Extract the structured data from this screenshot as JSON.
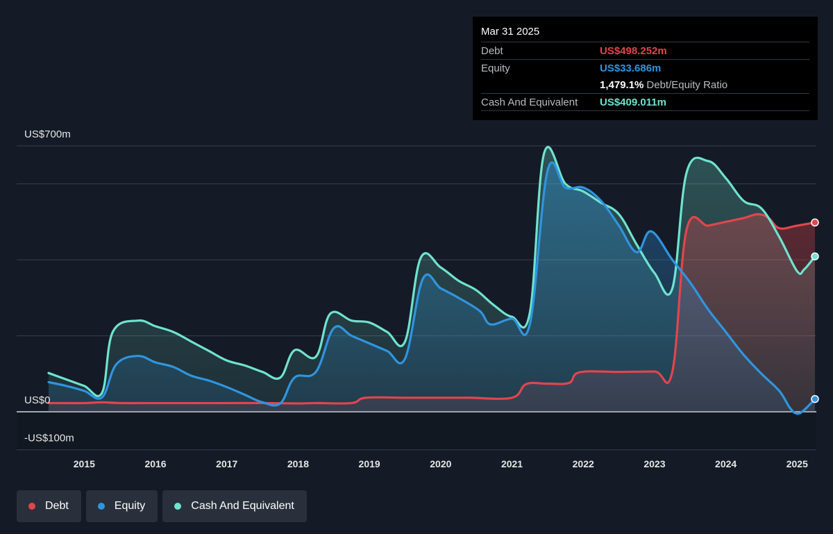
{
  "tooltip": {
    "date": "Mar 31 2025",
    "debt_label": "Debt",
    "debt_value": "US$498.252m",
    "equity_label": "Equity",
    "equity_value": "US$33.686m",
    "ratio_value": "1,479.1%",
    "ratio_label": "Debt/Equity Ratio",
    "cash_label": "Cash And Equivalent",
    "cash_value": "US$409.011m"
  },
  "legend": {
    "debt": "Debt",
    "equity": "Equity",
    "cash": "Cash And Equivalent"
  },
  "colors": {
    "background": "#151b26",
    "debt": "#e2454c",
    "equity": "#2f95e0",
    "cash": "#6fe3cf",
    "tooltip_bg": "#000000"
  },
  "chart_data": {
    "type": "area",
    "y_unit": "US$ millions",
    "ylim": [
      -100,
      700
    ],
    "y_tick_labels": [
      {
        "value": 700,
        "label": "US$700m"
      },
      {
        "value": 0,
        "label": "US$0"
      },
      {
        "value": -100,
        "label": "-US$100m"
      }
    ],
    "y_gridlines": [
      700,
      600,
      400,
      200,
      0,
      -100
    ],
    "x_tick_labels": [
      "2015",
      "2016",
      "2017",
      "2018",
      "2019",
      "2020",
      "2021",
      "2022",
      "2023",
      "2024",
      "2025"
    ],
    "x_range": [
      2014.48,
      2025.25
    ],
    "series": [
      {
        "name": "Debt",
        "color": "#e2454c",
        "points": [
          [
            2014.5,
            23
          ],
          [
            2015.0,
            23
          ],
          [
            2015.25,
            25
          ],
          [
            2015.5,
            23
          ],
          [
            2016.0,
            23
          ],
          [
            2016.5,
            23
          ],
          [
            2017.0,
            23
          ],
          [
            2017.5,
            23
          ],
          [
            2018.0,
            22
          ],
          [
            2018.25,
            23
          ],
          [
            2018.75,
            23
          ],
          [
            2018.95,
            37
          ],
          [
            2019.5,
            37
          ],
          [
            2020.0,
            37
          ],
          [
            2020.4,
            37
          ],
          [
            2021.0,
            37
          ],
          [
            2021.2,
            73
          ],
          [
            2021.5,
            74
          ],
          [
            2021.8,
            76
          ],
          [
            2021.95,
            104
          ],
          [
            2022.5,
            105
          ],
          [
            2023.0,
            106
          ],
          [
            2023.25,
            106
          ],
          [
            2023.45,
            480
          ],
          [
            2023.75,
            490
          ],
          [
            2024.0,
            500
          ],
          [
            2024.25,
            510
          ],
          [
            2024.45,
            520
          ],
          [
            2024.6,
            510
          ],
          [
            2024.75,
            483
          ],
          [
            2025.0,
            490
          ],
          [
            2025.25,
            498.252
          ]
        ]
      },
      {
        "name": "Equity",
        "color": "#2f95e0",
        "points": [
          [
            2014.5,
            78
          ],
          [
            2014.75,
            68
          ],
          [
            2015.0,
            55
          ],
          [
            2015.25,
            38
          ],
          [
            2015.45,
            125
          ],
          [
            2015.75,
            147
          ],
          [
            2016.0,
            130
          ],
          [
            2016.25,
            118
          ],
          [
            2016.5,
            95
          ],
          [
            2016.75,
            82
          ],
          [
            2017.0,
            65
          ],
          [
            2017.25,
            45
          ],
          [
            2017.5,
            25
          ],
          [
            2017.75,
            22
          ],
          [
            2017.95,
            90
          ],
          [
            2018.25,
            105
          ],
          [
            2018.5,
            220
          ],
          [
            2018.75,
            200
          ],
          [
            2019.0,
            180
          ],
          [
            2019.25,
            160
          ],
          [
            2019.5,
            140
          ],
          [
            2019.75,
            350
          ],
          [
            2020.0,
            325
          ],
          [
            2020.25,
            300
          ],
          [
            2020.55,
            265
          ],
          [
            2020.7,
            230
          ],
          [
            2021.0,
            245
          ],
          [
            2021.25,
            230
          ],
          [
            2021.5,
            635
          ],
          [
            2021.75,
            590
          ],
          [
            2022.0,
            590
          ],
          [
            2022.25,
            555
          ],
          [
            2022.5,
            490
          ],
          [
            2022.75,
            420
          ],
          [
            2022.95,
            475
          ],
          [
            2023.25,
            400
          ],
          [
            2023.5,
            340
          ],
          [
            2023.75,
            270
          ],
          [
            2024.0,
            210
          ],
          [
            2024.25,
            150
          ],
          [
            2024.5,
            100
          ],
          [
            2024.75,
            55
          ],
          [
            2024.9,
            10
          ],
          [
            2025.0,
            -5
          ],
          [
            2025.1,
            5
          ],
          [
            2025.25,
            33.686
          ]
        ]
      },
      {
        "name": "Cash And Equivalent",
        "color": "#6fe3cf",
        "points": [
          [
            2014.5,
            102
          ],
          [
            2014.75,
            85
          ],
          [
            2015.0,
            68
          ],
          [
            2015.25,
            50
          ],
          [
            2015.4,
            210
          ],
          [
            2015.75,
            240
          ],
          [
            2016.0,
            225
          ],
          [
            2016.25,
            210
          ],
          [
            2016.5,
            185
          ],
          [
            2016.75,
            160
          ],
          [
            2017.0,
            135
          ],
          [
            2017.25,
            122
          ],
          [
            2017.5,
            105
          ],
          [
            2017.75,
            90
          ],
          [
            2017.95,
            162
          ],
          [
            2018.25,
            145
          ],
          [
            2018.45,
            258
          ],
          [
            2018.75,
            240
          ],
          [
            2019.0,
            235
          ],
          [
            2019.25,
            210
          ],
          [
            2019.5,
            185
          ],
          [
            2019.72,
            405
          ],
          [
            2020.0,
            380
          ],
          [
            2020.25,
            345
          ],
          [
            2020.5,
            320
          ],
          [
            2020.75,
            280
          ],
          [
            2021.0,
            250
          ],
          [
            2021.25,
            260
          ],
          [
            2021.45,
            680
          ],
          [
            2021.75,
            600
          ],
          [
            2022.0,
            580
          ],
          [
            2022.25,
            550
          ],
          [
            2022.5,
            520
          ],
          [
            2022.75,
            440
          ],
          [
            2023.0,
            365
          ],
          [
            2023.25,
            325
          ],
          [
            2023.45,
            630
          ],
          [
            2023.75,
            660
          ],
          [
            2024.0,
            615
          ],
          [
            2024.25,
            555
          ],
          [
            2024.5,
            535
          ],
          [
            2024.75,
            460
          ],
          [
            2025.0,
            370
          ],
          [
            2025.1,
            375
          ],
          [
            2025.25,
            409.011
          ]
        ]
      }
    ]
  }
}
